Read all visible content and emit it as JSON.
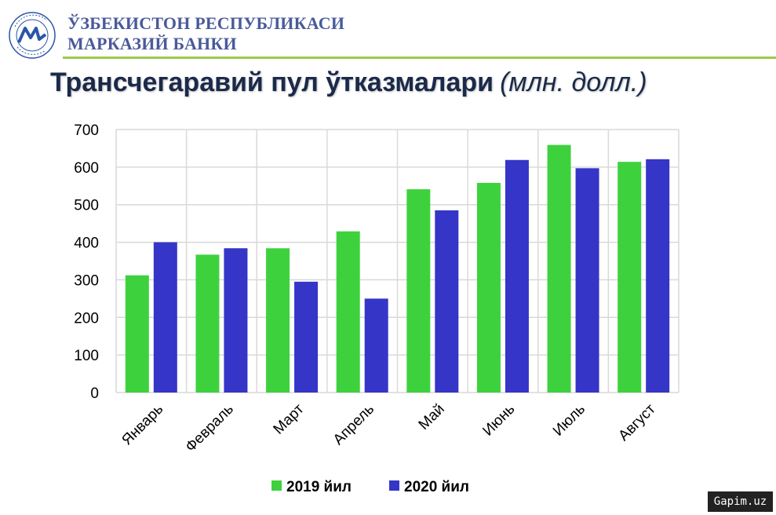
{
  "header": {
    "bank_line1": "ЎЗБЕКИСТОН РЕСПУБЛИКАСИ",
    "bank_line2": "МАРКАЗИЙ БАНКИ",
    "logo_ring_text": "O'ZBEKISTON RESPUBLIKASI MARKAZIY BANKI",
    "logo_letters": "MB"
  },
  "slide": {
    "title": "Трансчегаравий пул ўтказмалари",
    "unit": "(млн. долл.)"
  },
  "watermark": "Gapim.uz",
  "colors": {
    "series_2019": "#3dd23d",
    "series_2020": "#3535c8",
    "grid": "#d9d9d9",
    "rule": "#9cc94a"
  },
  "chart_data": {
    "type": "bar",
    "title": "Трансчегаравий пул ўтказмалари",
    "categories": [
      "Январь",
      "Февраль",
      "Март",
      "Апрель",
      "Май",
      "Июнь",
      "Июль",
      "Август"
    ],
    "series": [
      {
        "name": "2019 йил",
        "values": [
          312,
          367,
          384,
          429,
          541,
          558,
          659,
          614
        ]
      },
      {
        "name": "2020 йил",
        "values": [
          400,
          384,
          295,
          250,
          485,
          619,
          597,
          621
        ]
      }
    ],
    "ylim": [
      0,
      700
    ],
    "yticks": [
      0,
      100,
      200,
      300,
      400,
      500,
      600,
      700
    ],
    "grid": true,
    "legend_position": "bottom"
  }
}
